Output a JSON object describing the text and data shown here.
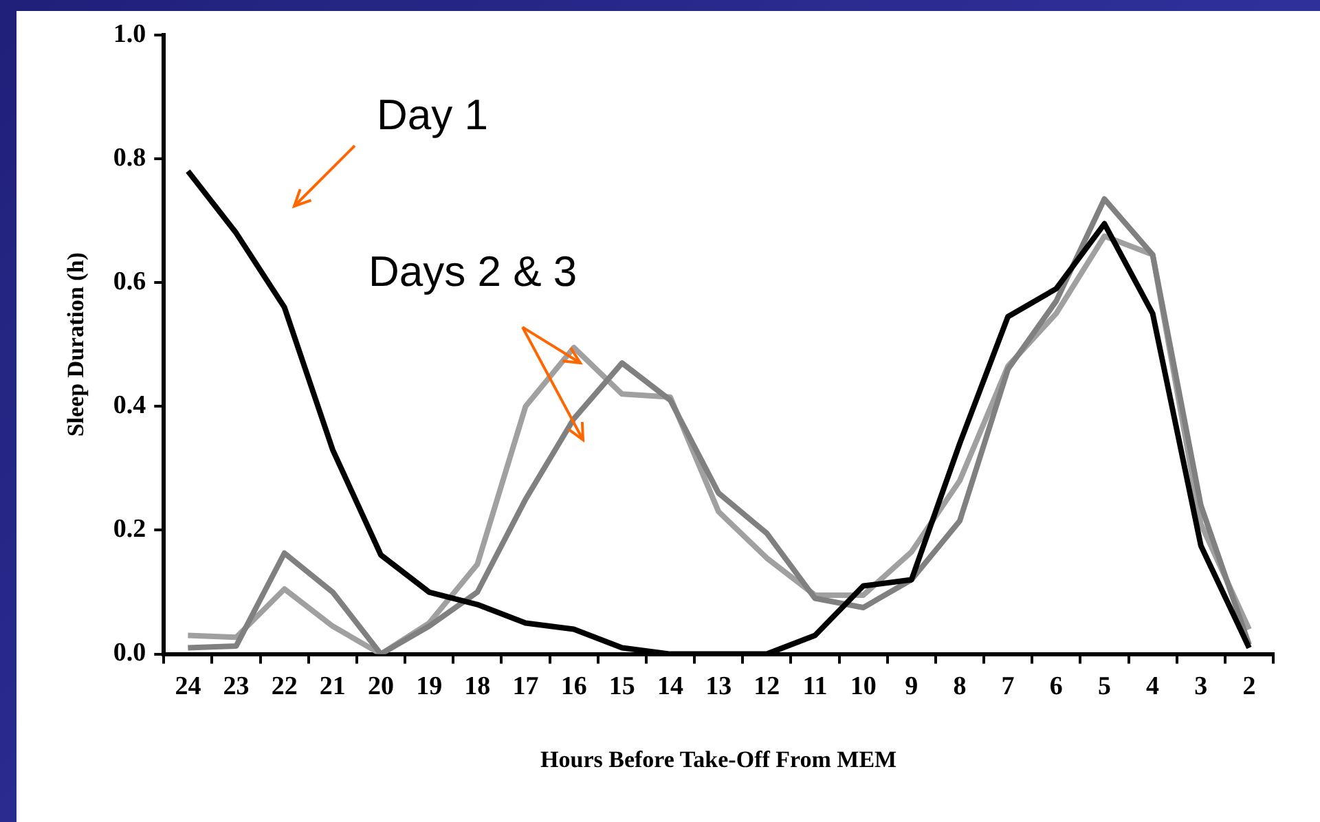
{
  "chart_data": {
    "type": "line",
    "xlabel": "Hours Before Take-Off From MEM",
    "ylabel": "Sleep Duration (h)",
    "categories": [
      "24",
      "23",
      "22",
      "21",
      "20",
      "19",
      "18",
      "17",
      "16",
      "15",
      "14",
      "13",
      "12",
      "11",
      "10",
      "9",
      "8",
      "7",
      "6",
      "5",
      "4",
      "3",
      "2"
    ],
    "series": [
      {
        "color": "#000000",
        "values": [
          0.78,
          0.68,
          0.56,
          0.33,
          0.16,
          0.1,
          0.08,
          0.05,
          0.04,
          0.01,
          0.0,
          0.0,
          0.0,
          0.03,
          0.11,
          0.12,
          0.34,
          0.545,
          0.59,
          0.695,
          0.55,
          0.175,
          0.01
        ]
      },
      {
        "color": "#808080",
        "values": [
          0.01,
          0.013,
          0.163,
          0.1,
          0.0,
          0.045,
          0.1,
          0.25,
          0.38,
          0.47,
          0.41,
          0.26,
          0.195,
          0.09,
          0.075,
          0.12,
          0.215,
          0.46,
          0.57,
          0.735,
          0.645,
          0.24,
          0.015
        ]
      },
      {
        "color": "#a0a0a0",
        "values": [
          0.03,
          0.027,
          0.105,
          0.045,
          0.0,
          0.05,
          0.145,
          0.4,
          0.495,
          0.42,
          0.415,
          0.23,
          0.155,
          0.095,
          0.095,
          0.165,
          0.28,
          0.465,
          0.55,
          0.675,
          0.645,
          0.21,
          0.04
        ]
      }
    ],
    "ylim": [
      0,
      1
    ],
    "yticks": [
      {
        "value": 0,
        "label": "0.0"
      },
      {
        "value": 0.2,
        "label": "0.2"
      },
      {
        "value": 0.4,
        "label": "0.4"
      },
      {
        "value": 0.6,
        "label": "0.6"
      },
      {
        "value": 0.8,
        "label": "0.8"
      },
      {
        "value": 1,
        "label": "1.0"
      }
    ],
    "marker": "none",
    "line_style": "solid",
    "annotations": [
      "Day 1",
      "Days 2 & 3"
    ]
  }
}
